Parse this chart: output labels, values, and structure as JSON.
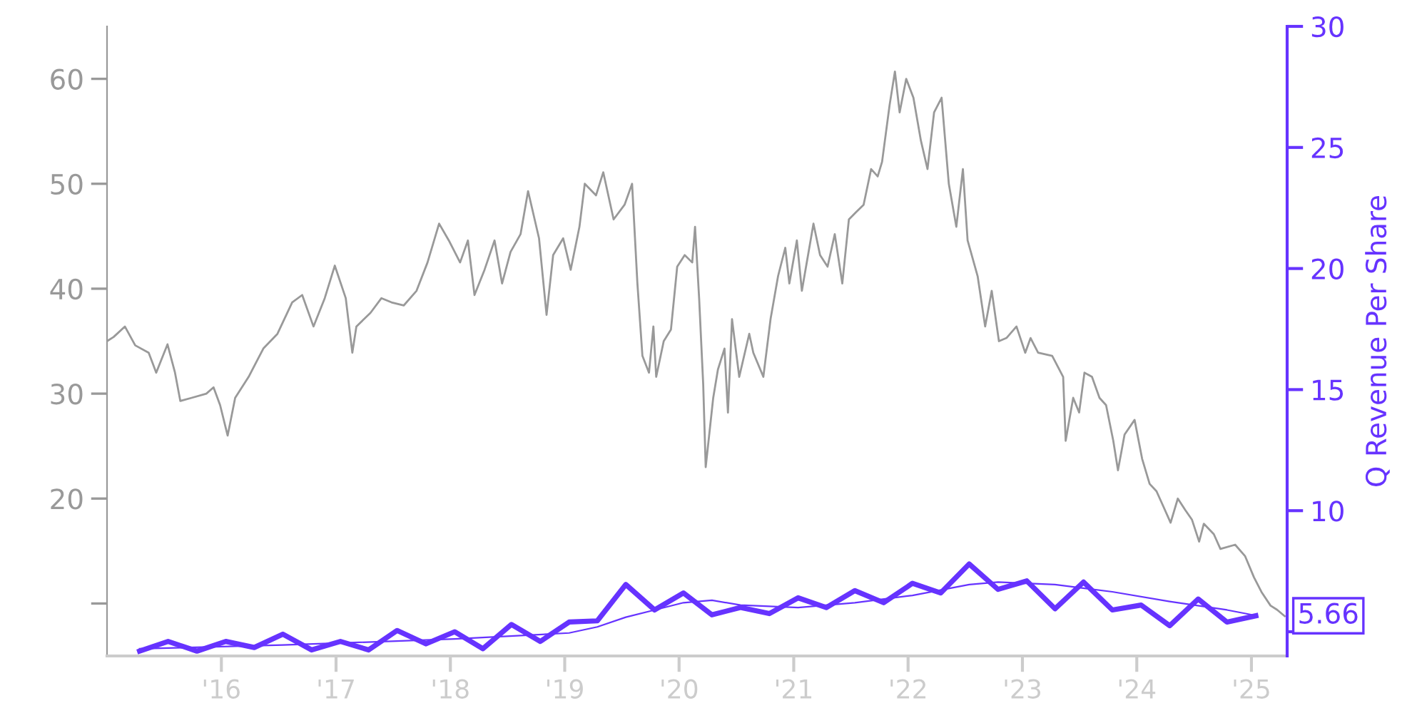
{
  "chart_data": {
    "type": "line",
    "y2label": "Q Revenue Per Share",
    "xlim": [
      "2015-01-01",
      "2025-04-25"
    ],
    "xticks": [
      {
        "value": "2016-01-01",
        "label": "'16"
      },
      {
        "value": "2017-01-01",
        "label": "'17"
      },
      {
        "value": "2018-01-01",
        "label": "'18"
      },
      {
        "value": "2019-01-01",
        "label": "'19"
      },
      {
        "value": "2020-01-01",
        "label": "'20"
      },
      {
        "value": "2021-01-01",
        "label": "'21"
      },
      {
        "value": "2022-01-01",
        "label": "'22"
      },
      {
        "value": "2023-01-01",
        "label": "'23"
      },
      {
        "value": "2024-01-01",
        "label": "'24"
      },
      {
        "value": "2025-01-01",
        "label": "'25"
      }
    ],
    "ylim": [
      5,
      65
    ],
    "yticks": [
      {
        "value": 10,
        "label": null
      },
      20,
      30,
      40,
      50,
      60
    ],
    "y2lim": [
      4,
      30
    ],
    "y2ticks": [
      {
        "value": 5,
        "label": null
      },
      10,
      15,
      20,
      25,
      30
    ],
    "grid": false,
    "legend": false,
    "marker": "none",
    "line_style": "solid",
    "series": [
      {
        "color": "#999999",
        "x": [
          "2015-01-01",
          "2015-01-22",
          "2015-02-27",
          "2015-04-01",
          "2015-05-14",
          "2015-06-07",
          "2015-07-13",
          "2015-08-06",
          "2015-08-23",
          "2015-09-28",
          "2015-11-14",
          "2015-12-07",
          "2015-12-28",
          "2016-01-21",
          "2016-02-14",
          "2016-03-28",
          "2016-05-14",
          "2016-06-28",
          "2016-08-14",
          "2016-09-15",
          "2016-10-21",
          "2016-11-26",
          "2016-12-28",
          "2017-02-01",
          "2017-02-22",
          "2017-03-07",
          "2017-04-21",
          "2017-05-26",
          "2017-06-27",
          "2017-08-05",
          "2017-09-15",
          "2017-10-20",
          "2017-11-26",
          "2017-12-27",
          "2018-02-01",
          "2018-02-26",
          "2018-03-19",
          "2018-04-20",
          "2018-05-22",
          "2018-06-15",
          "2018-07-12",
          "2018-08-13",
          "2018-09-06",
          "2018-10-11",
          "2018-11-04",
          "2018-11-25",
          "2018-12-27",
          "2019-01-20",
          "2019-02-17",
          "2019-03-06",
          "2019-04-11",
          "2019-05-04",
          "2019-06-06",
          "2019-07-11",
          "2019-08-04",
          "2019-08-21",
          "2019-09-06",
          "2019-09-27",
          "2019-10-11",
          "2019-10-20",
          "2019-11-13",
          "2019-12-06",
          "2019-12-26",
          "2020-01-19",
          "2020-02-12",
          "2020-02-21",
          "2020-03-05",
          "2020-03-18",
          "2020-03-26",
          "2020-04-19",
          "2020-05-04",
          "2020-05-25",
          "2020-06-05",
          "2020-06-18",
          "2020-07-11",
          "2020-08-12",
          "2020-08-25",
          "2020-09-26",
          "2020-10-19",
          "2020-11-12",
          "2020-12-05",
          "2020-12-18",
          "2021-01-11",
          "2021-01-27",
          "2021-03-05",
          "2021-03-26",
          "2021-04-19",
          "2021-05-12",
          "2021-06-05",
          "2021-06-26",
          "2021-07-19",
          "2021-08-12",
          "2021-09-05",
          "2021-09-26",
          "2021-10-10",
          "2021-11-03",
          "2021-11-20",
          "2021-12-05",
          "2021-12-26",
          "2022-01-18",
          "2022-02-11",
          "2022-03-04",
          "2022-03-25",
          "2022-04-18",
          "2022-05-11",
          "2022-06-04",
          "2022-06-25",
          "2022-07-10",
          "2022-08-11",
          "2022-09-04",
          "2022-09-25",
          "2022-10-18",
          "2022-11-11",
          "2022-12-13",
          "2023-01-10",
          "2023-01-27",
          "2023-02-20",
          "2023-04-06",
          "2023-05-11",
          "2023-05-19",
          "2023-06-12",
          "2023-07-01",
          "2023-07-18",
          "2023-08-11",
          "2023-09-04",
          "2023-09-25",
          "2023-10-18",
          "2023-11-02",
          "2023-11-23",
          "2023-12-25",
          "2024-01-18",
          "2024-02-11",
          "2024-03-04",
          "2024-03-25",
          "2024-04-18",
          "2024-05-11",
          "2024-06-04",
          "2024-06-25",
          "2024-07-18",
          "2024-08-02",
          "2024-09-03",
          "2024-09-24",
          "2024-11-10",
          "2024-12-12",
          "2025-01-09",
          "2025-02-02",
          "2025-03-03",
          "2025-03-24",
          "2025-04-17"
        ],
        "values": [
          35.0,
          35.4,
          36.4,
          34.6,
          33.9,
          32.0,
          34.7,
          32.0,
          29.3,
          29.6,
          30.0,
          30.6,
          28.9,
          26.0,
          29.6,
          31.6,
          34.3,
          35.7,
          38.7,
          39.4,
          36.4,
          39.1,
          42.2,
          39.1,
          33.9,
          36.4,
          37.7,
          39.1,
          38.7,
          38.4,
          39.8,
          42.5,
          46.2,
          44.6,
          42.5,
          44.6,
          39.4,
          41.8,
          44.6,
          40.5,
          43.5,
          45.2,
          49.3,
          44.8,
          37.5,
          43.2,
          44.8,
          41.8,
          45.9,
          50.0,
          48.9,
          51.1,
          46.6,
          48.0,
          50.0,
          40.5,
          33.6,
          32.0,
          36.4,
          31.6,
          35.0,
          36.1,
          42.1,
          43.2,
          42.5,
          45.9,
          39.1,
          30.9,
          23.0,
          29.6,
          32.3,
          34.3,
          28.2,
          37.1,
          31.6,
          35.7,
          33.9,
          31.6,
          37.1,
          41.2,
          43.9,
          40.5,
          44.6,
          39.8,
          46.2,
          43.2,
          42.1,
          45.2,
          40.5,
          46.6,
          47.3,
          48.0,
          51.4,
          50.7,
          52.1,
          57.5,
          60.7,
          56.8,
          60.0,
          58.2,
          54.1,
          51.4,
          56.8,
          58.2,
          50.0,
          45.9,
          51.4,
          44.6,
          41.2,
          36.4,
          39.8,
          35.0,
          35.3,
          36.4,
          33.9,
          35.3,
          33.9,
          33.6,
          31.6,
          25.5,
          29.6,
          28.2,
          32.0,
          31.6,
          29.6,
          28.9,
          25.5,
          22.7,
          26.1,
          27.5,
          23.8,
          21.4,
          20.7,
          19.3,
          17.7,
          20.0,
          18.9,
          18.0,
          15.9,
          17.6,
          16.6,
          15.2,
          15.6,
          14.5,
          12.5,
          11.1,
          9.8,
          9.4,
          8.8
        ]
      },
      {
        "color": "#6633ff",
        "axis": "y2",
        "x": [
          "2015-04-15",
          "2015-07-15",
          "2015-10-15",
          "2016-01-15",
          "2016-04-15",
          "2016-07-15",
          "2016-10-15",
          "2017-01-15",
          "2017-04-15",
          "2017-07-15",
          "2017-10-15",
          "2018-01-15",
          "2018-04-15",
          "2018-07-15",
          "2018-10-15",
          "2019-01-15",
          "2019-04-15",
          "2019-07-15",
          "2019-10-15",
          "2020-01-15",
          "2020-04-15",
          "2020-07-15",
          "2020-10-15",
          "2021-01-15",
          "2021-04-15",
          "2021-07-15",
          "2021-10-15",
          "2022-01-15",
          "2022-04-15",
          "2022-07-15",
          "2022-10-15",
          "2023-01-15",
          "2023-04-15",
          "2023-07-15",
          "2023-10-15",
          "2024-01-15",
          "2024-04-15",
          "2024-07-15",
          "2024-10-15",
          "2025-01-15"
        ],
        "values": [
          4.2,
          4.6,
          4.2,
          4.6,
          4.35,
          4.9,
          4.25,
          4.6,
          4.25,
          5.05,
          4.5,
          5.0,
          4.3,
          5.3,
          4.6,
          5.4,
          5.45,
          6.95,
          5.9,
          6.6,
          5.7,
          6.0,
          5.75,
          6.4,
          6.0,
          6.7,
          6.2,
          7.0,
          6.6,
          7.8,
          6.75,
          7.1,
          5.95,
          7.05,
          5.9,
          6.1,
          5.25,
          6.35,
          5.4,
          5.66
        ]
      },
      {
        "color": "#6633ff",
        "axis": "y2",
        "x": [
          "2015-04-15",
          "2016-07-15",
          "2018-01-15",
          "2019-01-15",
          "2019-04-15",
          "2019-07-15",
          "2019-10-15",
          "2020-01-15",
          "2020-04-15",
          "2020-07-15",
          "2021-01-15",
          "2021-07-15",
          "2022-01-15",
          "2022-07-15",
          "2022-10-15",
          "2023-04-15",
          "2023-10-15",
          "2024-04-15",
          "2024-10-15",
          "2025-01-15"
        ],
        "values": [
          4.3,
          4.45,
          4.7,
          4.95,
          5.2,
          5.6,
          5.9,
          6.2,
          6.3,
          6.1,
          6.0,
          6.2,
          6.5,
          6.95,
          7.05,
          6.95,
          6.65,
          6.25,
          5.9,
          5.67
        ]
      }
    ],
    "annotations": [
      "5.66"
    ]
  }
}
